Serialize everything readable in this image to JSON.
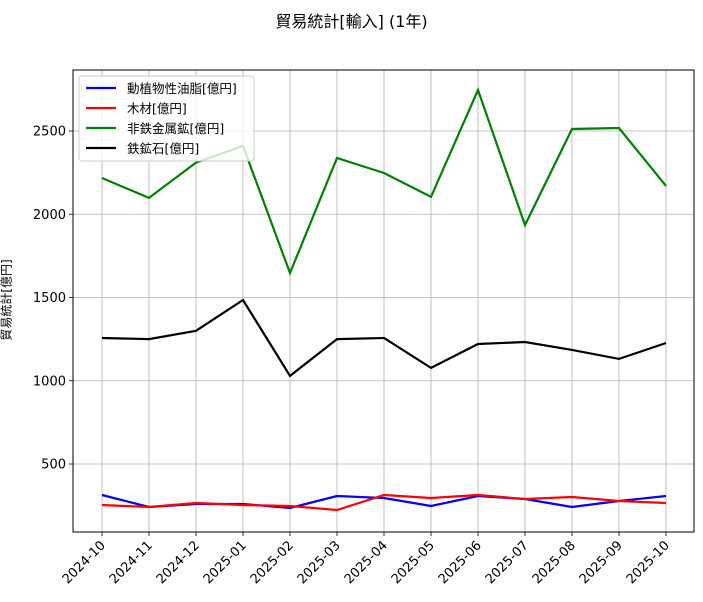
{
  "chart_data": {
    "type": "line",
    "title": "貿易統計[輸入] (1年)",
    "xlabel": "",
    "ylabel": "貿易統計[億円]",
    "x": [
      "2024-10",
      "2024-11",
      "2024-12",
      "2025-01",
      "2025-02",
      "2025-03",
      "2025-04",
      "2025-05",
      "2025-06",
      "2025-07",
      "2025-08",
      "2025-09",
      "2025-10"
    ],
    "yticks": [
      500,
      1000,
      1500,
      2000,
      2500
    ],
    "ylim": [
      90,
      2880
    ],
    "grid": true,
    "legend_position": "upper left",
    "series": [
      {
        "name": "動植物性油脂[億円]",
        "color": "#0000ff",
        "values": [
          314,
          242,
          260,
          260,
          236,
          308,
          296,
          248,
          308,
          290,
          242,
          278,
          308
        ]
      },
      {
        "name": "木材[億円]",
        "color": "#ff0000",
        "values": [
          254,
          242,
          266,
          254,
          248,
          224,
          314,
          296,
          314,
          290,
          302,
          278,
          266
        ]
      },
      {
        "name": "非鉄金属鉱[億円]",
        "color": "#008000",
        "values": [
          2218,
          2098,
          2310,
          2410,
          1647,
          2338,
          2248,
          2104,
          2746,
          1935,
          2512,
          2518,
          2170
        ]
      },
      {
        "name": "鉄鉱石[億円]",
        "color": "#000000",
        "values": [
          1257,
          1250,
          1300,
          1485,
          1029,
          1250,
          1257,
          1077,
          1221,
          1233,
          1185,
          1131,
          1227
        ]
      }
    ]
  }
}
